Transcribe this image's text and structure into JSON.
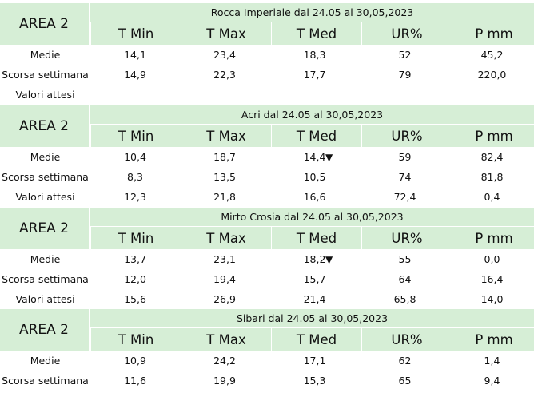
{
  "columns": [
    "T Min",
    "T Max",
    "T Med",
    "UR%",
    "P mm"
  ],
  "row_labels": {
    "avg": "Medie",
    "last_week": "Scorsa settimana",
    "expected": "Valori attesi"
  },
  "area_label": "AREA 2",
  "colors": {
    "band": "#d6eed6"
  },
  "stations": [
    {
      "title": "Rocca Imperiale  dal 24.05 al 30,05,2023",
      "rows": [
        {
          "label": "Medie",
          "values": [
            "14,1",
            "23,4",
            "18,3",
            "52",
            "45,2"
          ],
          "arrow": ""
        },
        {
          "label": "Scorsa settimana",
          "values": [
            "14,9",
            "22,3",
            "17,7",
            "79",
            "220,0"
          ],
          "arrow": ""
        },
        {
          "label": "Valori attesi",
          "values": [
            "",
            "",
            "",
            "",
            ""
          ],
          "arrow": ""
        }
      ]
    },
    {
      "title": "Acri dal 24.05 al 30,05,2023",
      "rows": [
        {
          "label": "Medie",
          "values": [
            "10,4",
            "18,7",
            "14,4",
            "59",
            "82,4"
          ],
          "arrow": "▼"
        },
        {
          "label": "Scorsa settimana",
          "values": [
            "8,3",
            "13,5",
            "10,5",
            "74",
            "81,8"
          ],
          "arrow": ""
        },
        {
          "label": "Valori attesi",
          "values": [
            "12,3",
            "21,8",
            "16,6",
            "72,4",
            "0,4"
          ],
          "arrow": ""
        }
      ]
    },
    {
      "title": "Mirto Crosia dal 24.05 al 30,05,2023",
      "rows": [
        {
          "label": "Medie",
          "values": [
            "13,7",
            "23,1",
            "18,2",
            "55",
            "0,0"
          ],
          "arrow": "▼"
        },
        {
          "label": "Scorsa settimana",
          "values": [
            "12,0",
            "19,4",
            "15,7",
            "64",
            "16,4"
          ],
          "arrow": ""
        },
        {
          "label": "Valori attesi",
          "values": [
            "15,6",
            "26,9",
            "21,4",
            "65,8",
            "14,0"
          ],
          "arrow": ""
        }
      ]
    },
    {
      "title": "Sibari dal 24.05 al 30,05,2023",
      "rows": [
        {
          "label": "Medie",
          "values": [
            "10,9",
            "24,2",
            "17,1",
            "62",
            "1,4"
          ],
          "arrow": ""
        },
        {
          "label": "Scorsa settimana",
          "values": [
            "11,6",
            "19,9",
            "15,3",
            "65",
            "9,4"
          ],
          "arrow": ""
        }
      ]
    }
  ]
}
